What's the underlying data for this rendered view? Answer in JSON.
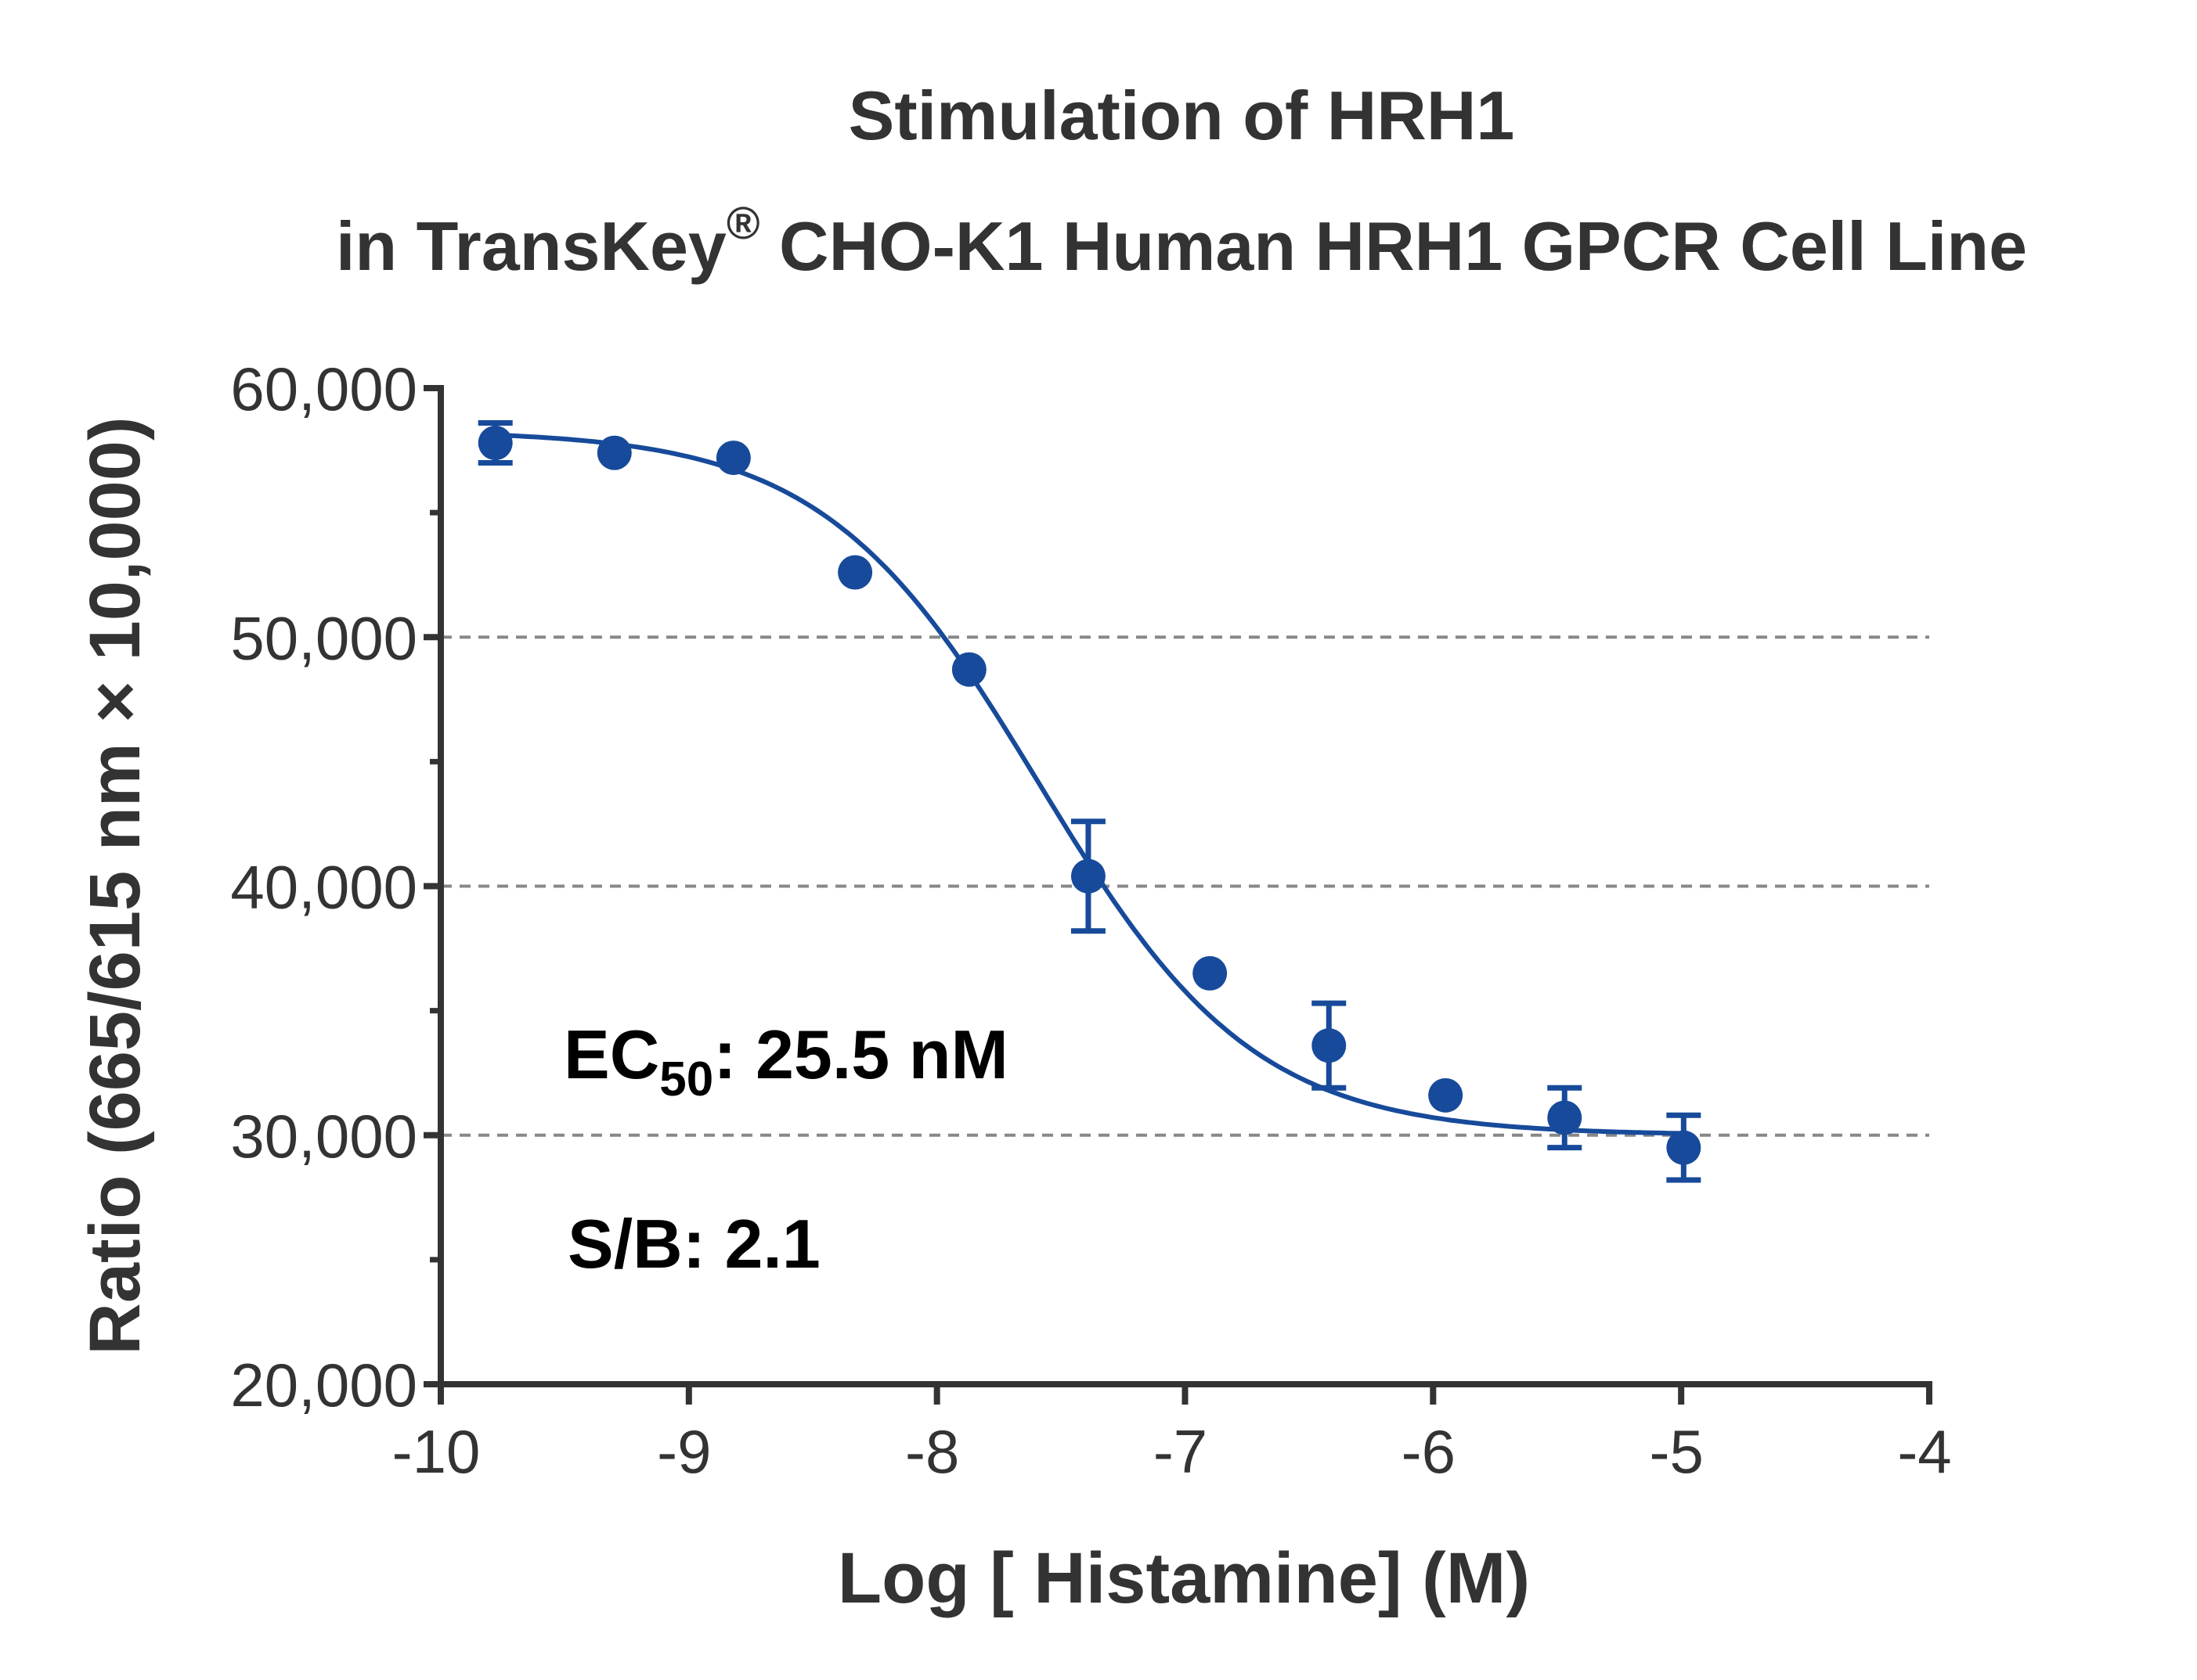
{
  "chart_data": {
    "type": "scatter",
    "title": "Stimulation of  HRH1",
    "subtitle_pre": "in TransKey",
    "subtitle_sup": "®",
    "subtitle_post": " CHO-K1 Human HRH1 GPCR Cell Line",
    "xlabel": "Log [ Histamine]  (M)",
    "ylabel": "Ratio (665/615 nm × 10,000)",
    "xlim": [
      -10,
      -4
    ],
    "ylim": [
      20000,
      60000
    ],
    "x_ticks": [
      -10,
      -9,
      -8,
      -7,
      -6,
      -5,
      -4
    ],
    "x_tick_labels": [
      "-10",
      "-9",
      "-8",
      "-7",
      "-6",
      "-5",
      "-4"
    ],
    "y_ticks": [
      20000,
      30000,
      40000,
      50000,
      60000
    ],
    "y_tick_labels": [
      "20,000",
      "30,000",
      "40,000",
      "50,000",
      "60,000"
    ],
    "y_minor_ticks": [
      25000,
      35000,
      45000,
      55000
    ],
    "gridlines_y": [
      30000,
      40000,
      50000
    ],
    "grid": "dashed horizontal at 30,000 / 40,000 / 50,000",
    "marker_color": "#174a9a",
    "grid_color": "#888888",
    "axis_color": "#333333",
    "series": [
      {
        "x": [
          -9.78,
          -9.3,
          -8.82,
          -8.33,
          -7.87,
          -7.39,
          -6.9,
          -6.42,
          -5.95,
          -5.47,
          -4.99
        ],
        "y": [
          57800,
          57400,
          57200,
          52600,
          48700,
          40400,
          36500,
          33600,
          31600,
          30700,
          29500
        ],
        "err": [
          800,
          0,
          0,
          0,
          0,
          2200,
          0,
          1700,
          0,
          1200,
          1300
        ]
      }
    ],
    "fit": {
      "type": "four-parameter logistic",
      "top": 58300,
      "bottom": 30000,
      "log_ec50": -7.59,
      "hill": -1.0,
      "x_range": [
        -9.78,
        -4.99
      ]
    },
    "annotations": {
      "ec50_prefix": "EC",
      "ec50_sub": "50",
      "ec50_rest": ": 25.5 nM",
      "sb": "S/B: 2.1"
    }
  }
}
